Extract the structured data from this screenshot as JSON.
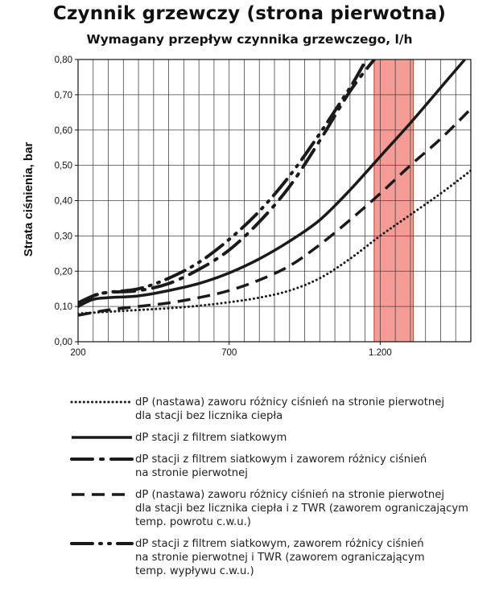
{
  "chart_data": {
    "type": "line",
    "title": "Czynnik grzewczy (strona pierwotna)",
    "subtitle": "Wymagany przepływ czynnika grzewczego, l/h",
    "xlabel": "",
    "ylabel": "Strata ciśnienia, bar",
    "xlim": [
      200,
      1500
    ],
    "ylim": [
      0,
      0.8
    ],
    "x_ticks": [
      200,
      700,
      1200
    ],
    "x_tick_labels": [
      "200",
      "700",
      "1.200"
    ],
    "y_ticks": [
      0,
      0.1,
      0.2,
      0.3,
      0.4,
      0.5,
      0.6,
      0.7,
      0.8
    ],
    "y_tick_labels": [
      "0,00",
      "0,10",
      "0,20",
      "0,30",
      "0,40",
      "0,50",
      "0,60",
      "0,70",
      "0,80"
    ],
    "grid": true,
    "highlight_band": {
      "x_from": 1180,
      "x_to": 1310,
      "color": "#f28b82"
    },
    "series": [
      {
        "name": "dP (nastawa) zaworu różnicy ciśnień na stronie pierwotnej\ndla stacji bez licznika ciepła",
        "style": "dotted",
        "x": [
          200,
          300,
          400,
          500,
          600,
          700,
          800,
          900,
          1000,
          1100,
          1200,
          1300,
          1400,
          1500
        ],
        "y": [
          0.08,
          0.085,
          0.09,
          0.095,
          0.102,
          0.112,
          0.125,
          0.145,
          0.18,
          0.235,
          0.3,
          0.36,
          0.42,
          0.485
        ]
      },
      {
        "name": "dP stacji z filtrem siatkowym",
        "style": "solid",
        "x": [
          200,
          250,
          300,
          400,
          500,
          600,
          700,
          800,
          900,
          1000,
          1100,
          1200,
          1300,
          1400,
          1480
        ],
        "y": [
          0.1,
          0.12,
          0.125,
          0.13,
          0.145,
          0.165,
          0.195,
          0.235,
          0.285,
          0.345,
          0.43,
          0.525,
          0.62,
          0.72,
          0.8
        ]
      },
      {
        "name": "dP stacji z filtrem siatkowym i zaworem różnicy ciśnień\nna stronie pierwotnej",
        "style": "dash-dot",
        "x": [
          200,
          250,
          300,
          400,
          500,
          600,
          700,
          800,
          900,
          1000,
          1100,
          1180
        ],
        "y": [
          0.1,
          0.13,
          0.14,
          0.145,
          0.165,
          0.205,
          0.26,
          0.34,
          0.44,
          0.57,
          0.71,
          0.8
        ]
      },
      {
        "name": "dP (nastawa) zaworu różnicy ciśnień na stronie pierwotnej\ndla stacji bez licznika ciepła i z TWR (zaworem ograniczającym\ntemp. powrotu c.w.u.)",
        "style": "dashed",
        "x": [
          200,
          300,
          400,
          500,
          600,
          700,
          800,
          900,
          1000,
          1100,
          1200,
          1300,
          1400,
          1500
        ],
        "y": [
          0.075,
          0.09,
          0.1,
          0.11,
          0.125,
          0.145,
          0.175,
          0.215,
          0.275,
          0.345,
          0.42,
          0.5,
          0.575,
          0.66
        ]
      },
      {
        "name": "dP stacji z filtrem siatkowym, zaworem różnicy ciśnień\nna stronie pierwotnej i TWR (zaworem ograniczającym\ntemp. wypływu c.w.u.)",
        "style": "dash-dotdot",
        "x": [
          200,
          250,
          300,
          400,
          500,
          600,
          700,
          800,
          900,
          1000,
          1100,
          1200,
          1270
        ],
        "y": [
          0.11,
          0.13,
          0.14,
          0.15,
          0.18,
          0.225,
          0.29,
          0.37,
          0.47,
          0.59,
          0.72,
          0.85,
          0.8
        ]
      }
    ]
  }
}
